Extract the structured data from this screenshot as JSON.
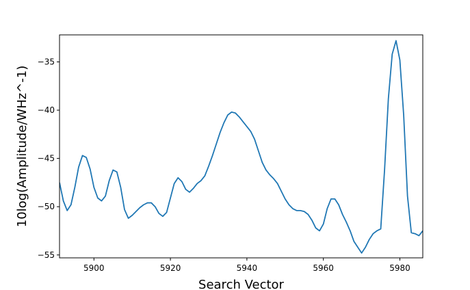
{
  "chart_data": {
    "type": "line",
    "title": "",
    "xlabel": "Search Vector",
    "ylabel": "10log(Amplitude/WHz^-1)",
    "xlim": [
      5891,
      5986
    ],
    "ylim": [
      -55.3,
      -32.2
    ],
    "x_ticks": [
      5900,
      5920,
      5940,
      5960,
      5980
    ],
    "x_tick_labels": [
      "5900",
      "5920",
      "5940",
      "5960",
      "5980"
    ],
    "y_ticks": [
      -35,
      -40,
      -45,
      -50,
      -55
    ],
    "y_tick_labels": [
      "−35",
      "−40",
      "−45",
      "−50",
      "−55"
    ],
    "grid": false,
    "line_color": "#1f77b4",
    "series": [
      {
        "x": [
          5891,
          5892,
          5893,
          5894,
          5895,
          5896,
          5897,
          5898,
          5899,
          5900,
          5901,
          5902,
          5903,
          5904,
          5905,
          5906,
          5907,
          5908,
          5909,
          5910,
          5911,
          5912,
          5913,
          5914,
          5915,
          5916,
          5917,
          5918,
          5919,
          5920,
          5921,
          5922,
          5923,
          5924,
          5925,
          5926,
          5927,
          5928,
          5929,
          5930,
          5931,
          5932,
          5933,
          5934,
          5935,
          5936,
          5937,
          5938,
          5939,
          5940,
          5941,
          5942,
          5943,
          5944,
          5945,
          5946,
          5947,
          5948,
          5949,
          5950,
          5951,
          5952,
          5953,
          5954,
          5955,
          5956,
          5957,
          5958,
          5959,
          5960,
          5961,
          5962,
          5963,
          5964,
          5965,
          5966,
          5967,
          5968,
          5969,
          5970,
          5971,
          5972,
          5973,
          5974,
          5975,
          5976,
          5977,
          5978,
          5979,
          5980,
          5981,
          5982,
          5983,
          5984,
          5985,
          5986
        ],
        "values": [
          -47.5,
          -49.4,
          -50.4,
          -49.8,
          -48.0,
          -45.9,
          -44.7,
          -44.9,
          -46.1,
          -48.0,
          -49.1,
          -49.4,
          -48.9,
          -47.3,
          -46.2,
          -46.4,
          -48.0,
          -50.3,
          -51.2,
          -50.9,
          -50.5,
          -50.1,
          -49.8,
          -49.6,
          -49.6,
          -50.0,
          -50.7,
          -51.0,
          -50.6,
          -49.1,
          -47.6,
          -47.0,
          -47.4,
          -48.2,
          -48.5,
          -48.1,
          -47.6,
          -47.3,
          -46.8,
          -45.8,
          -44.7,
          -43.5,
          -42.3,
          -41.3,
          -40.5,
          -40.2,
          -40.3,
          -40.7,
          -41.2,
          -41.7,
          -42.2,
          -43.0,
          -44.2,
          -45.4,
          -46.2,
          -46.7,
          -47.1,
          -47.6,
          -48.4,
          -49.2,
          -49.8,
          -50.2,
          -50.4,
          -50.4,
          -50.5,
          -50.8,
          -51.4,
          -52.2,
          -52.5,
          -51.8,
          -50.2,
          -49.2,
          -49.2,
          -49.8,
          -50.8,
          -51.6,
          -52.5,
          -53.6,
          -54.2,
          -54.8,
          -54.2,
          -53.4,
          -52.8,
          -52.5,
          -52.3,
          -46.2,
          -38.8,
          -34.2,
          -32.8,
          -34.8,
          -40.5,
          -48.9,
          -52.7,
          -52.8,
          -53.0,
          -52.5
        ]
      }
    ]
  }
}
